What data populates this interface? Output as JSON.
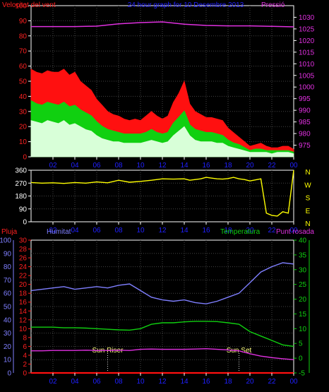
{
  "chart_data": [
    {
      "type": "line",
      "title": "24 hour graph for 10 Desembre 2013",
      "x": [
        "02",
        "04",
        "06",
        "08",
        "10",
        "12",
        "14",
        "16",
        "18",
        "20",
        "22",
        "00"
      ],
      "left_axis": {
        "label": "Velocitat del vent",
        "ylim": [
          0,
          100
        ],
        "ticks": [
          0,
          10,
          20,
          30,
          40,
          50,
          60,
          70,
          80,
          90,
          100
        ]
      },
      "right_axis": {
        "label": "Pressió",
        "ylim": [
          970,
          1035
        ],
        "ticks": [
          975,
          980,
          985,
          990,
          995,
          1000,
          1005,
          1010,
          1015,
          1020,
          1025,
          1030
        ]
      },
      "grid": true,
      "series": [
        {
          "name": "Velocitat del vent",
          "role": "gust",
          "color": "#ff1010",
          "x": [
            0,
            0.5,
            1,
            1.5,
            2,
            2.5,
            3,
            3.5,
            4,
            4.5,
            5,
            5.5,
            6,
            6.5,
            7,
            7.5,
            8,
            8.5,
            9,
            9.5,
            10,
            10.5,
            11,
            11.5,
            12,
            12.5,
            13,
            13.5,
            14,
            14.5,
            15,
            15.5,
            16,
            16.5,
            17,
            17.5,
            18,
            18.5,
            19,
            19.5,
            20,
            20.5,
            21,
            21.5,
            22,
            22.5,
            23,
            23.5,
            24
          ],
          "values": [
            58,
            56,
            55,
            57,
            56,
            56,
            58,
            54,
            56,
            50,
            47,
            44,
            38,
            34,
            30,
            28,
            27,
            25,
            24,
            25,
            24,
            27,
            30,
            27,
            25,
            27,
            36,
            42,
            50,
            35,
            30,
            28,
            26,
            26,
            25,
            24,
            19,
            16,
            13,
            10,
            7,
            8,
            9,
            7,
            6,
            6,
            7,
            7,
            5
          ]
        },
        {
          "role": "average",
          "color": "#10d010",
          "x": [
            0,
            0.5,
            1,
            1.5,
            2,
            2.5,
            3,
            3.5,
            4,
            4.5,
            5,
            5.5,
            6,
            6.5,
            7,
            7.5,
            8,
            8.5,
            9,
            9.5,
            10,
            10.5,
            11,
            11.5,
            12,
            12.5,
            13,
            13.5,
            14,
            14.5,
            15,
            15.5,
            16,
            16.5,
            17,
            17.5,
            18,
            18.5,
            19,
            19.5,
            20,
            20.5,
            21,
            21.5,
            22,
            22.5,
            23,
            23.5,
            24
          ],
          "values": [
            37,
            35,
            34,
            36,
            35,
            34,
            36,
            33,
            34,
            31,
            29,
            27,
            23,
            20,
            18,
            17,
            16,
            15,
            15,
            15,
            15,
            16,
            18,
            16,
            15,
            16,
            22,
            26,
            30,
            21,
            18,
            17,
            16,
            16,
            15,
            14,
            11,
            9,
            8,
            6,
            4,
            5,
            5,
            4,
            4,
            4,
            4,
            4,
            3
          ]
        },
        {
          "role": "minimum",
          "color": "#d8ffd8",
          "x": [
            0,
            0.5,
            1,
            1.5,
            2,
            2.5,
            3,
            3.5,
            4,
            4.5,
            5,
            5.5,
            6,
            6.5,
            7,
            7.5,
            8,
            8.5,
            9,
            9.5,
            10,
            10.5,
            11,
            11.5,
            12,
            12.5,
            13,
            13.5,
            14,
            14.5,
            15,
            15.5,
            16,
            16.5,
            17,
            17.5,
            18,
            18.5,
            19,
            19.5,
            20,
            20.5,
            21,
            21.5,
            22,
            22.5,
            23,
            23.5,
            24
          ],
          "values": [
            24,
            23,
            22,
            24,
            23,
            22,
            24,
            21,
            22,
            20,
            18,
            17,
            14,
            12,
            11,
            10,
            10,
            9,
            9,
            9,
            9,
            10,
            11,
            10,
            9,
            10,
            14,
            17,
            20,
            14,
            11,
            10,
            10,
            10,
            9,
            9,
            7,
            6,
            5,
            4,
            3,
            3,
            3,
            3,
            2,
            3,
            3,
            3,
            2
          ]
        },
        {
          "name": "Pressió",
          "color": "#e030e0",
          "axis": "right",
          "x": [
            0,
            2,
            4,
            6,
            8,
            10,
            12,
            14,
            16,
            18,
            20,
            22,
            24
          ],
          "values": [
            1026.0,
            1026.0,
            1026.0,
            1026.2,
            1027.2,
            1027.7,
            1028.0,
            1027.0,
            1026.5,
            1026.3,
            1026.3,
            1026.1,
            1025.9
          ]
        }
      ]
    },
    {
      "type": "line",
      "x": [
        "02",
        "04",
        "06",
        "08",
        "10",
        "12",
        "14",
        "16",
        "18",
        "20",
        "22",
        "00"
      ],
      "left_axis": {
        "ylim": [
          0,
          360
        ],
        "ticks": [
          0,
          90,
          180,
          270,
          360
        ]
      },
      "right_axis": {
        "ticks": [
          "N",
          "W",
          "S",
          "E",
          "N"
        ]
      },
      "grid": true,
      "series": [
        {
          "role": "wind-direction",
          "color": "#ffff00",
          "x": [
            0,
            1,
            2,
            3,
            4,
            5,
            6,
            7,
            8,
            9,
            10,
            11,
            12,
            13,
            14,
            14.5,
            15,
            15.5,
            16,
            16.5,
            17,
            17.5,
            18,
            18.5,
            19,
            19.5,
            20,
            21,
            21.5,
            22,
            22.5,
            23,
            23.5,
            24
          ],
          "values": [
            274,
            270,
            272,
            268,
            274,
            270,
            278,
            272,
            290,
            276,
            282,
            290,
            300,
            298,
            300,
            290,
            295,
            300,
            310,
            305,
            300,
            298,
            302,
            310,
            300,
            295,
            285,
            300,
            60,
            45,
            40,
            70,
            60,
            360
          ]
        }
      ]
    },
    {
      "type": "line",
      "x": [
        "02",
        "04",
        "06",
        "08",
        "10",
        "12",
        "14",
        "16",
        "18",
        "20",
        "22",
        "00"
      ],
      "axes": [
        {
          "label": "Pluja",
          "side": "left",
          "ylim": [
            0,
            30
          ],
          "ticks": [
            0,
            2,
            4,
            6,
            8,
            10,
            12,
            14,
            16,
            18,
            20,
            22,
            24,
            26,
            28,
            30
          ]
        },
        {
          "label": "Humitat",
          "side": "left",
          "ylim": [
            0,
            100
          ],
          "ticks": [
            0,
            10,
            20,
            30,
            40,
            50,
            60,
            70,
            80,
            90,
            100
          ]
        },
        {
          "label": "Temperatura",
          "side": "right",
          "ylim": [
            -5,
            40
          ],
          "ticks": [
            -5,
            0,
            5,
            10,
            15,
            20,
            25,
            30,
            35,
            40
          ]
        },
        {
          "label": "Punt rosada",
          "side": "right"
        }
      ],
      "annotations": [
        {
          "text": "Sun Riser",
          "x": 7
        },
        {
          "text": "Sun Set",
          "x": 19
        }
      ],
      "grid": true,
      "series": [
        {
          "name": "Humitat",
          "color": "#7f7fff",
          "axis": "Humitat",
          "x": [
            0,
            1,
            2,
            3,
            4,
            5,
            6,
            7,
            8,
            9,
            10,
            11,
            12,
            13,
            14,
            15,
            16,
            17,
            18,
            19,
            20,
            21,
            22,
            23,
            24
          ],
          "values": [
            62,
            63,
            64,
            65,
            63,
            64,
            65,
            64,
            66,
            67,
            62,
            57,
            55,
            54,
            55,
            53,
            52,
            54,
            57,
            60,
            68,
            76,
            80,
            83,
            82
          ]
        },
        {
          "name": "Temperatura",
          "color": "#10d010",
          "axis": "Temperatura",
          "x": [
            0,
            1,
            2,
            3,
            4,
            5,
            6,
            7,
            8,
            9,
            10,
            11,
            12,
            13,
            14,
            15,
            16,
            17,
            18,
            19,
            20,
            21,
            22,
            23,
            24
          ],
          "values": [
            10.5,
            10.5,
            10.5,
            10.3,
            10.3,
            10.2,
            10,
            9.8,
            9.6,
            9.5,
            10,
            11.5,
            12,
            12,
            12.3,
            12.5,
            12.5,
            12.4,
            12,
            11.5,
            9,
            7.5,
            6,
            4.5,
            4
          ]
        },
        {
          "name": "Punt rosada",
          "color": "#e030e0",
          "axis": "Temperatura",
          "x": [
            0,
            1,
            2,
            3,
            4,
            5,
            6,
            7,
            8,
            9,
            10,
            11,
            12,
            13,
            14,
            15,
            16,
            17,
            18,
            19,
            20,
            21,
            22,
            23,
            24
          ],
          "values": [
            2.5,
            2.5,
            2.6,
            2.6,
            2.6,
            2.7,
            2.6,
            2.6,
            2.7,
            2.6,
            3,
            3.1,
            3,
            3,
            3,
            3.1,
            3.2,
            3,
            2.8,
            2.5,
            1.5,
            0.7,
            0.2,
            -0.2,
            -0.5
          ]
        },
        {
          "name": "Pluja",
          "color": "#ff1010",
          "axis": "Pluja",
          "x": [
            0,
            24
          ],
          "values": [
            0,
            0
          ]
        }
      ]
    }
  ]
}
